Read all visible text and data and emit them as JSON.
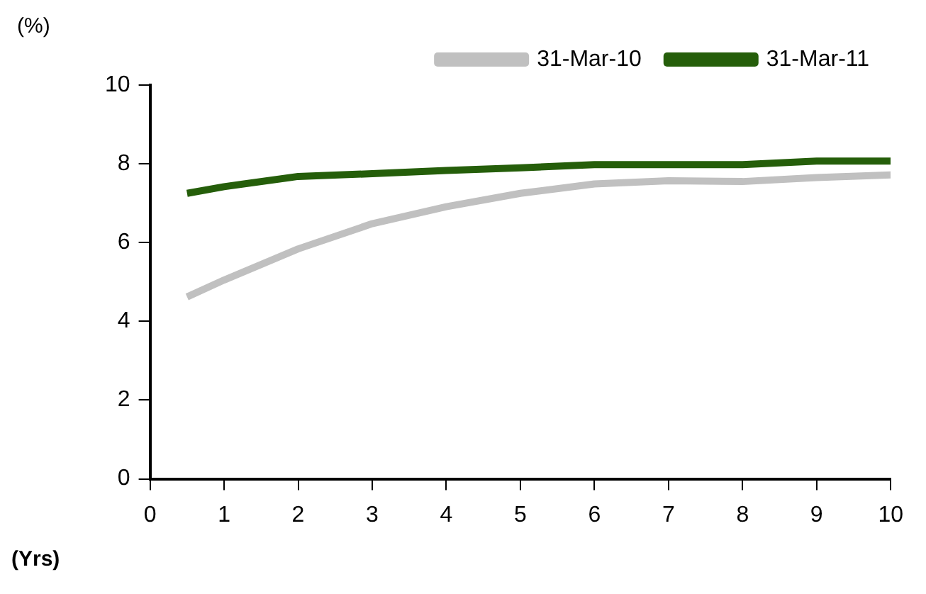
{
  "chart_data": {
    "type": "line",
    "xlabel": "(Yrs)",
    "ylabel": "(%)",
    "x": [
      0.5,
      1,
      2,
      3,
      4,
      5,
      6,
      7,
      8,
      9,
      10
    ],
    "series": [
      {
        "name": "31-Mar-10",
        "color": "#c0c0c0",
        "values": [
          4.62,
          5.05,
          5.84,
          6.48,
          6.91,
          7.25,
          7.49,
          7.57,
          7.55,
          7.65,
          7.72
        ]
      },
      {
        "name": "31-Mar-11",
        "color": "#255e0a",
        "values": [
          7.25,
          7.42,
          7.68,
          7.75,
          7.83,
          7.9,
          7.98,
          7.98,
          7.98,
          8.07,
          8.07
        ]
      }
    ],
    "xlim": [
      0,
      10
    ],
    "xticks": [
      0,
      1,
      2,
      3,
      4,
      5,
      6,
      7,
      8,
      9,
      10
    ],
    "ylim": [
      0,
      10
    ],
    "yticks": [
      0,
      2,
      4,
      6,
      8,
      10
    ],
    "grid": false,
    "legend": "top right",
    "marker": "none",
    "line_style": "solid"
  }
}
